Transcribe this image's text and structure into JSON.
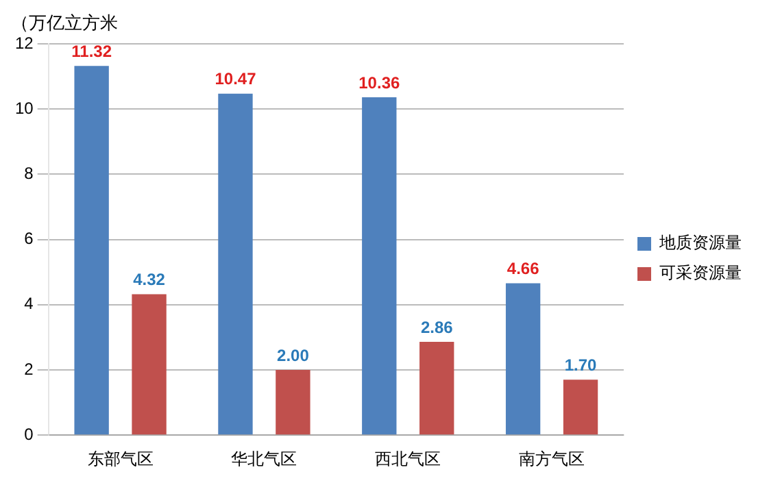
{
  "chart_data": {
    "type": "bar",
    "ylabel": "（万亿立方米",
    "categories": [
      "东部气区",
      "华北气区",
      "西北气区",
      "南方气区"
    ],
    "series": [
      {
        "name": "地质资源量",
        "color": "#4f81bd",
        "values": [
          11.32,
          10.47,
          10.36,
          4.66
        ],
        "value_labels": [
          "11.32",
          "10.47",
          "10.36",
          "4.66"
        ]
      },
      {
        "name": "可采资源量",
        "color": "#c0504d",
        "values": [
          4.32,
          2.0,
          2.86,
          1.7
        ],
        "value_labels": [
          "4.32",
          "2.00",
          "2.86",
          "1.70"
        ]
      }
    ],
    "ylim": [
      0,
      12
    ],
    "yticks": [
      0,
      2,
      4,
      6,
      8,
      10,
      12
    ],
    "grid": "y",
    "legend": "right"
  }
}
